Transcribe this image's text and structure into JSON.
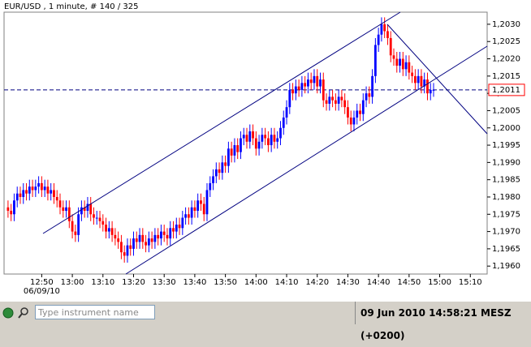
{
  "chart_data": {
    "type": "candlestick",
    "title": "EUR/USD , 1 minute, # 140 / 325",
    "open": [
      1.1977,
      1.1976,
      1.1975,
      1.1979,
      1.1981,
      1.198,
      1.1982,
      1.1981,
      1.1983,
      1.1982,
      1.1983,
      1.1984,
      1.1982,
      1.1983,
      1.1981,
      1.1982,
      1.198,
      1.1979,
      1.1977,
      1.1976,
      1.1977,
      1.1973,
      1.197,
      1.1969,
      1.1975,
      1.1977,
      1.1976,
      1.1978,
      1.1975,
      1.1974,
      1.1974,
      1.1973,
      1.1972,
      1.197,
      1.1971,
      1.1969,
      1.1968,
      1.1967,
      1.1964,
      1.1963,
      1.1966,
      1.1965,
      1.1968,
      1.1967,
      1.1969,
      1.1967,
      1.1966,
      1.1968,
      1.1967,
      1.1969,
      1.1968,
      1.197,
      1.1969,
      1.1968,
      1.1971,
      1.197,
      1.1972,
      1.1971,
      1.1974,
      1.1975,
      1.1974,
      1.1977,
      1.1976,
      1.1979,
      1.1978,
      1.1975,
      1.1982,
      1.1984,
      1.1986,
      1.1988,
      1.1987,
      1.199,
      1.1989,
      1.1994,
      1.1992,
      1.1995,
      1.1993,
      1.1997,
      1.1998,
      1.1996,
      1.1999,
      1.1997,
      1.1994,
      1.1996,
      1.1998,
      1.1997,
      1.1995,
      1.1998,
      1.1996,
      1.1997,
      1.2,
      1.2003,
      1.2006,
      1.2011,
      1.201,
      1.2012,
      1.2011,
      1.2013,
      1.2012,
      1.2014,
      1.2013,
      1.2015,
      1.2012,
      1.2014,
      1.2008,
      1.2007,
      1.2009,
      1.2008,
      1.2007,
      1.2009,
      1.2008,
      1.2006,
      1.2003,
      1.2001,
      1.2003,
      1.2005,
      1.2004,
      1.2008,
      1.201,
      1.2009,
      1.2015,
      1.2024,
      1.2027,
      1.203,
      1.2028,
      1.2026,
      1.2021,
      1.202,
      1.2018,
      1.202,
      1.2017,
      1.2019,
      1.2016,
      1.2015,
      1.2013,
      1.2015,
      1.2012,
      1.2014,
      1.201,
      1.2011
    ],
    "high": [
      1.1979,
      1.1978,
      1.1981,
      1.1983,
      1.1983,
      1.1984,
      1.1984,
      1.1985,
      1.1985,
      1.1985,
      1.1986,
      1.1986,
      1.1985,
      1.1985,
      1.1984,
      1.1984,
      1.1982,
      1.1981,
      1.1979,
      1.1979,
      1.1979,
      1.1975,
      1.1972,
      1.1977,
      1.1979,
      1.1979,
      1.198,
      1.198,
      1.1977,
      1.1976,
      1.1976,
      1.1975,
      1.1974,
      1.1973,
      1.1973,
      1.1971,
      1.197,
      1.1969,
      1.1966,
      1.1968,
      1.1968,
      1.197,
      1.197,
      1.1971,
      1.1971,
      1.1969,
      1.197,
      1.197,
      1.1971,
      1.1971,
      1.1972,
      1.1972,
      1.1971,
      1.1973,
      1.1973,
      1.1974,
      1.1974,
      1.1976,
      1.1977,
      1.1977,
      1.1979,
      1.1979,
      1.1981,
      1.1981,
      1.198,
      1.1984,
      1.1986,
      1.1988,
      1.199,
      1.199,
      1.1992,
      1.1992,
      1.1996,
      1.1996,
      1.1997,
      1.1997,
      1.1999,
      1.2,
      1.2,
      1.2001,
      1.2001,
      1.1999,
      1.1998,
      1.2,
      1.2,
      1.1999,
      1.2,
      1.2,
      1.1999,
      1.2002,
      1.2005,
      1.2008,
      1.2013,
      1.2013,
      1.2014,
      1.2014,
      1.2015,
      1.2015,
      1.2016,
      1.2016,
      1.2017,
      1.2017,
      1.2016,
      1.2016,
      1.201,
      1.2011,
      1.2011,
      1.201,
      1.2011,
      1.2011,
      1.201,
      1.2008,
      1.2005,
      1.2005,
      1.2007,
      1.2007,
      1.201,
      1.2012,
      1.2012,
      1.2017,
      1.2026,
      1.2029,
      1.2032,
      1.2032,
      1.203,
      1.2028,
      1.2023,
      1.2022,
      1.2022,
      1.2022,
      1.2021,
      1.2021,
      1.2018,
      1.2017,
      1.2017,
      1.2017,
      1.2016,
      1.2016,
      1.2013,
      1.2013
    ],
    "low": [
      1.1974,
      1.1973,
      1.1973,
      1.1977,
      1.1978,
      1.1978,
      1.1979,
      1.1979,
      1.198,
      1.198,
      1.1981,
      1.198,
      1.198,
      1.1979,
      1.1979,
      1.1978,
      1.1977,
      1.1975,
      1.1974,
      1.1974,
      1.1971,
      1.1968,
      1.1967,
      1.1967,
      1.1973,
      1.1974,
      1.1974,
      1.1973,
      1.1972,
      1.1972,
      1.1971,
      1.197,
      1.1968,
      1.1968,
      1.1967,
      1.1966,
      1.1965,
      1.1962,
      1.1961,
      1.1961,
      1.1963,
      1.1963,
      1.1965,
      1.1965,
      1.1965,
      1.1964,
      1.1964,
      1.1965,
      1.1965,
      1.1966,
      1.1966,
      1.1967,
      1.1966,
      1.1966,
      1.1968,
      1.1968,
      1.1969,
      1.1969,
      1.1972,
      1.1972,
      1.1972,
      1.1974,
      1.1974,
      1.1976,
      1.1973,
      1.1973,
      1.198,
      1.1982,
      1.1984,
      1.1985,
      1.1985,
      1.1987,
      1.1987,
      1.199,
      1.199,
      1.1991,
      1.1991,
      1.1995,
      1.1994,
      1.1994,
      1.1995,
      1.1992,
      1.1992,
      1.1994,
      1.1995,
      1.1993,
      1.1993,
      1.1994,
      1.1994,
      1.1995,
      1.1998,
      1.2001,
      1.2004,
      1.2008,
      1.2008,
      1.2009,
      1.2009,
      1.201,
      1.201,
      1.2011,
      1.2011,
      1.201,
      1.201,
      1.2006,
      1.2005,
      1.2005,
      1.2006,
      1.2005,
      1.2005,
      1.2006,
      1.2004,
      1.2001,
      1.1999,
      1.1999,
      1.2001,
      1.2002,
      1.2002,
      1.2006,
      1.2007,
      1.2007,
      1.2013,
      1.2022,
      1.2025,
      1.2026,
      1.2024,
      1.2019,
      1.2018,
      1.2016,
      1.2016,
      1.2015,
      1.2015,
      1.2014,
      1.2013,
      1.2011,
      1.2011,
      1.201,
      1.201,
      1.2008,
      1.2008,
      1.2009
    ],
    "close": [
      1.1976,
      1.1975,
      1.1979,
      1.1981,
      1.198,
      1.1982,
      1.1981,
      1.1983,
      1.1982,
      1.1983,
      1.1984,
      1.1982,
      1.1983,
      1.1981,
      1.1982,
      1.198,
      1.1979,
      1.1977,
      1.1976,
      1.1977,
      1.1973,
      1.197,
      1.1969,
      1.1975,
      1.1977,
      1.1976,
      1.1978,
      1.1975,
      1.1974,
      1.1974,
      1.1973,
      1.1972,
      1.197,
      1.1971,
      1.1969,
      1.1968,
      1.1967,
      1.1964,
      1.1963,
      1.1966,
      1.1965,
      1.1968,
      1.1967,
      1.1969,
      1.1967,
      1.1966,
      1.1968,
      1.1967,
      1.1969,
      1.1968,
      1.197,
      1.1969,
      1.1968,
      1.1971,
      1.197,
      1.1972,
      1.1971,
      1.1974,
      1.1975,
      1.1974,
      1.1977,
      1.1976,
      1.1979,
      1.1978,
      1.1975,
      1.1982,
      1.1984,
      1.1986,
      1.1988,
      1.1987,
      1.199,
      1.1989,
      1.1994,
      1.1992,
      1.1995,
      1.1993,
      1.1997,
      1.1998,
      1.1996,
      1.1999,
      1.1997,
      1.1994,
      1.1996,
      1.1998,
      1.1997,
      1.1995,
      1.1998,
      1.1996,
      1.1997,
      1.2,
      1.2003,
      1.2006,
      1.2011,
      1.201,
      1.2012,
      1.2011,
      1.2013,
      1.2012,
      1.2014,
      1.2013,
      1.2015,
      1.2012,
      1.2014,
      1.2008,
      1.2007,
      1.2009,
      1.2008,
      1.2007,
      1.2009,
      1.2008,
      1.2006,
      1.2003,
      1.2001,
      1.2003,
      1.2005,
      1.2004,
      1.2008,
      1.201,
      1.2009,
      1.2015,
      1.2024,
      1.2027,
      1.203,
      1.2028,
      1.2026,
      1.2021,
      1.202,
      1.2018,
      1.202,
      1.2017,
      1.2019,
      1.2016,
      1.2015,
      1.2013,
      1.2015,
      1.2012,
      1.2014,
      1.201,
      1.2011,
      1.2011
    ],
    "up_color": "#0000ff",
    "down_color": "#ff0000",
    "ylim": [
      1.19577,
      1.20335
    ],
    "yticks": [
      {
        "value": 1.196,
        "label": "1,1960"
      },
      {
        "value": 1.1965,
        "label": "1,1965"
      },
      {
        "value": 1.197,
        "label": "1,1970"
      },
      {
        "value": 1.1975,
        "label": "1,1975"
      },
      {
        "value": 1.198,
        "label": "1,1980"
      },
      {
        "value": 1.1985,
        "label": "1,1985"
      },
      {
        "value": 1.199,
        "label": "1,1990"
      },
      {
        "value": 1.1995,
        "label": "1,1995"
      },
      {
        "value": 1.2,
        "label": "1,2000"
      },
      {
        "value": 1.2005,
        "label": "1,2005"
      },
      {
        "value": 1.201,
        "label": "1,2010"
      },
      {
        "value": 1.2015,
        "label": "1,2015"
      },
      {
        "value": 1.202,
        "label": "1,2020"
      },
      {
        "value": 1.2025,
        "label": "1,2025"
      },
      {
        "value": 1.203,
        "label": "1,2030"
      }
    ],
    "xlim": [
      -1.3,
      156.5
    ],
    "xticks": [
      {
        "value": 11,
        "label": "12:50"
      },
      {
        "value": 21,
        "label": "13:00"
      },
      {
        "value": 31,
        "label": "13:10"
      },
      {
        "value": 41,
        "label": "13:20"
      },
      {
        "value": 51,
        "label": "13:30"
      },
      {
        "value": 61,
        "label": "13:40"
      },
      {
        "value": 71,
        "label": "13:50"
      },
      {
        "value": 81,
        "label": "14:00"
      },
      {
        "value": 91,
        "label": "14:10"
      },
      {
        "value": 101,
        "label": "14:20"
      },
      {
        "value": 111,
        "label": "14:30"
      },
      {
        "value": 121,
        "label": "14:40"
      },
      {
        "value": 131,
        "label": "14:50"
      },
      {
        "value": 141,
        "label": "15:00"
      },
      {
        "value": 151,
        "label": "15:10"
      }
    ],
    "date_label": "06/09/10",
    "current_price": {
      "value": 1.2011,
      "label": "1,2011"
    }
  },
  "footer": {
    "search_placeholder": "Type instrument name",
    "datetime": "09 Jun 2010 14:58:21 MESZ (+0200)"
  }
}
